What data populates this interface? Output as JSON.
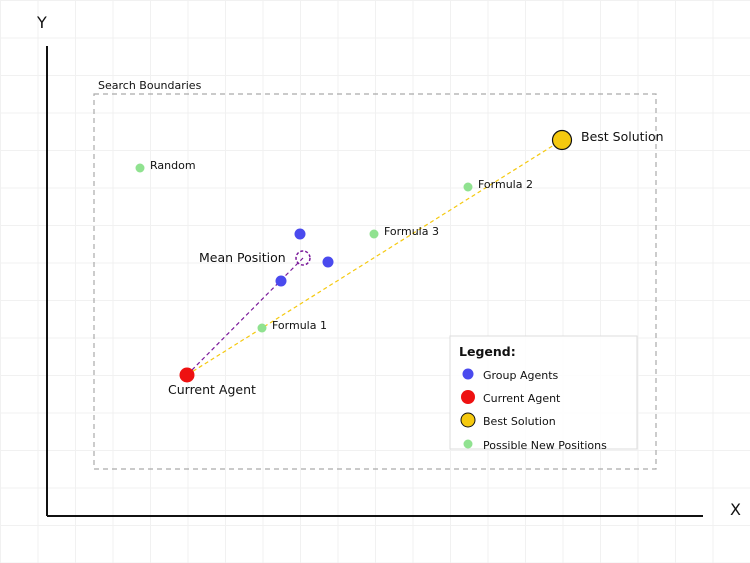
{
  "axes": {
    "x_label": "X",
    "y_label": "Y"
  },
  "search_boundaries_label": "Search Boundaries",
  "points": {
    "best_solution": {
      "label": "Best Solution"
    },
    "current_agent": {
      "label": "Current Agent"
    },
    "mean_position": {
      "label": "Mean Position"
    },
    "random": {
      "label": "Random"
    },
    "formula_1": {
      "label": "Formula 1"
    },
    "formula_2": {
      "label": "Formula 2"
    },
    "formula_3": {
      "label": "Formula 3"
    }
  },
  "legend": {
    "title": "Legend:",
    "items": [
      {
        "label": "Group Agents",
        "color": "#4a4aee"
      },
      {
        "label": "Current Agent",
        "color": "#ee1111"
      },
      {
        "label": "Best Solution",
        "color": "#f5c90f"
      },
      {
        "label": "Possible New Positions",
        "color": "#90e290"
      }
    ]
  },
  "colors": {
    "group_agent": "#4a4aee",
    "current_agent": "#ee1111",
    "best_solution": "#f5c90f",
    "possible_position": "#90e290",
    "mean_path": "#7a1a9a",
    "best_path": "#f5c90f"
  }
}
